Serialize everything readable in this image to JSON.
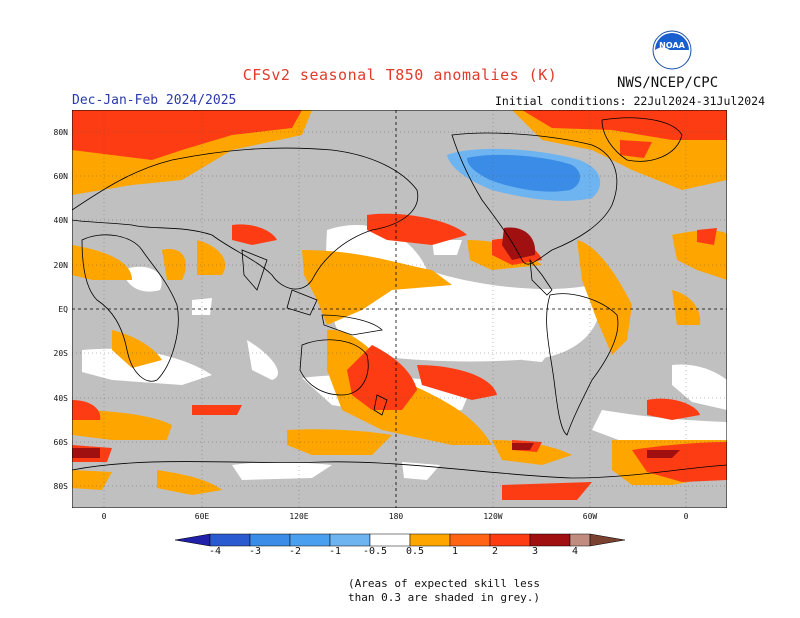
{
  "title": "CFSv2 seasonal T850 anomalies (K)",
  "period": "Dec-Jan-Feb 2024/2025",
  "initial_conditions": "Initial conditions: 22Jul2024-31Jul2024",
  "agency": "NWS/NCEP/CPC",
  "logo_text": "NOAA",
  "lat_labels": [
    "80N",
    "60N",
    "40N",
    "20N",
    "EQ",
    "20S",
    "40S",
    "60S",
    "80S"
  ],
  "lon_labels": [
    "0",
    "60E",
    "120E",
    "180",
    "120W",
    "60W",
    "0"
  ],
  "colorbar_labels": [
    "-4",
    "-3",
    "-2",
    "-1",
    "-0.5",
    "0.5",
    "1",
    "2",
    "3",
    "4"
  ],
  "note_line1": "(Areas of expected skill less",
  "note_line2": "than 0.3 are shaded in grey.)",
  "colors": {
    "grey": "#c0c0c0",
    "orange": "#fea500",
    "red_orange": "#fe3c14",
    "dark_red": "#a01010",
    "pink_tan": "#c08c80",
    "brown": "#7a4030",
    "light_blue": "#6eb4f0",
    "blue": "#3a8ce6",
    "mid_blue": "#2a5ad0",
    "dark_blue": "#2020a8",
    "title_red": "#e23a2a",
    "period_blue": "#2a3aa8"
  }
}
